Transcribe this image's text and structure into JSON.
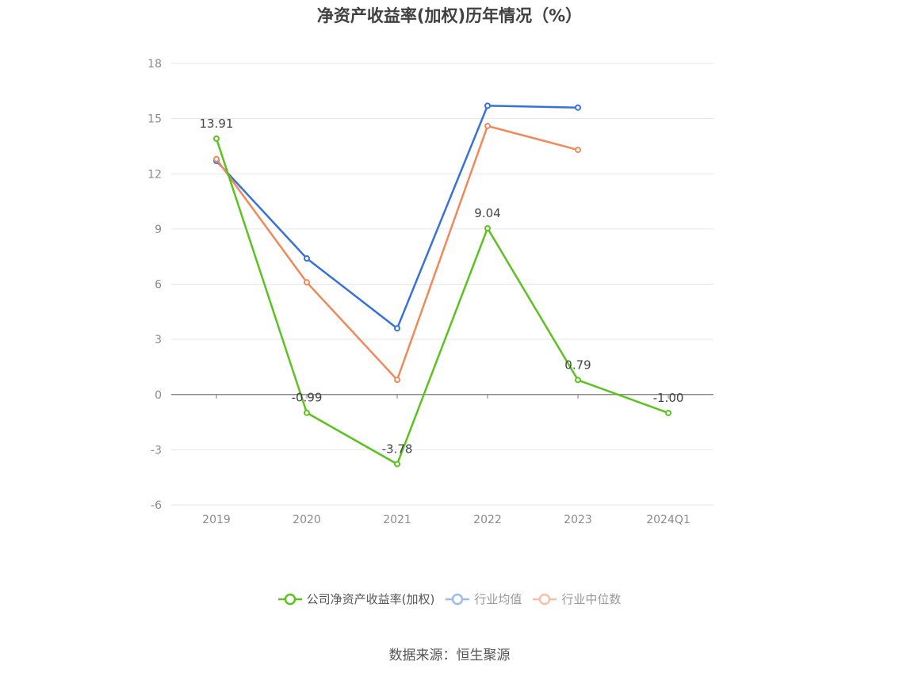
{
  "title": "净资产收益率(加权)历年情况（%）",
  "source": "数据来源：恒生聚源",
  "chart_data": {
    "type": "line",
    "categories": [
      "2019",
      "2020",
      "2021",
      "2022",
      "2023",
      "2024Q1"
    ],
    "ylim": [
      -6,
      18
    ],
    "yticks": [
      -6,
      -3,
      0,
      3,
      6,
      9,
      12,
      15,
      18
    ],
    "grid": true,
    "legend_position": "bottom",
    "series": [
      {
        "name": "公司净资产收益率(加权)",
        "color": "#5bc21f",
        "values": [
          13.91,
          -0.99,
          -3.78,
          9.04,
          0.79,
          -1.0
        ],
        "labels": [
          "13.91",
          "-0.99",
          "-3.78",
          "9.04",
          "0.79",
          "-1.00"
        ]
      },
      {
        "name": "行业均值",
        "color": "#3872d8",
        "values": [
          12.7,
          7.4,
          3.6,
          15.7,
          15.6,
          null
        ]
      },
      {
        "name": "行业中位数",
        "color": "#f0895a",
        "values": [
          12.8,
          6.1,
          0.8,
          14.6,
          13.3,
          null
        ]
      }
    ]
  }
}
